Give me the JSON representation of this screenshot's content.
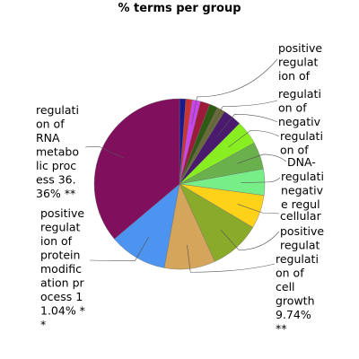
{
  "chart_data": {
    "type": "pie",
    "title": "% terms per group",
    "start_angle_deg": 90,
    "direction": "clockwise",
    "slices": [
      {
        "label": "",
        "value": 1.2,
        "color": "#1a1a8c"
      },
      {
        "label": "",
        "value": 1.2,
        "color": "#cc3333"
      },
      {
        "label": "positive regulation of",
        "value": 1.6,
        "color": "#cc44ee"
      },
      {
        "label": "",
        "value": 1.8,
        "color": "#9e1a3a"
      },
      {
        "label": "",
        "value": 1.6,
        "color": "#2f5a14"
      },
      {
        "label": "regulation of",
        "value": 1.5,
        "color": "#6a6a3a"
      },
      {
        "label": "negativ",
        "value": 3.6,
        "color": "#4a1a6e"
      },
      {
        "label": "regulation of",
        "value": 4.6,
        "color": "#88ee22"
      },
      {
        "label": "DNA-",
        "value": 5.2,
        "color": "#6ab04c"
      },
      {
        "label": "regulati",
        "value": 5.0,
        "color": "#77ee88"
      },
      {
        "label": "negative regul",
        "value": 6.4,
        "color": "#ffd21a"
      },
      {
        "label": "cellular positive regulat",
        "value": 9.74,
        "color": "#8aaa2a"
      },
      {
        "label": "regulation of cell growth 9.74% **",
        "value": 9.74,
        "color": "#d4a55a"
      },
      {
        "label": "positive regulation of protein modification process 11.04% **",
        "value": 11.04,
        "color": "#4d94f0"
      },
      {
        "label": "regulation of RNA metabolic process 36.36% **",
        "value": 36.36,
        "color": "#800f5e"
      }
    ],
    "text_labels": [
      {
        "text": "positive\nregulat\nion of",
        "slice": 2
      },
      {
        "text": "regulati\non of",
        "slice": 5
      },
      {
        "text": "negativ",
        "slice": 6
      },
      {
        "text": "regulati\non of",
        "slice": 7
      },
      {
        "text": "DNA-",
        "slice": 8
      },
      {
        "text": "regulati\nnegativ\ne regul",
        "slice": 9
      },
      {
        "text": "cellular",
        "slice": 10
      },
      {
        "text": "positive\nregulat",
        "slice": 11
      },
      {
        "text": "regulati\non of\ncell\ngrowth\n9.74%\n**",
        "slice": 12
      },
      {
        "text": "positive\nregulat\nion of\nprotein\nmodific\nation pr\nocess 1\n1.04% *\n*",
        "slice": 13
      },
      {
        "text": "regulati\non of\nRNA\nmetabo\nlic proc\ness 36.\n36% **",
        "slice": 14
      }
    ]
  }
}
